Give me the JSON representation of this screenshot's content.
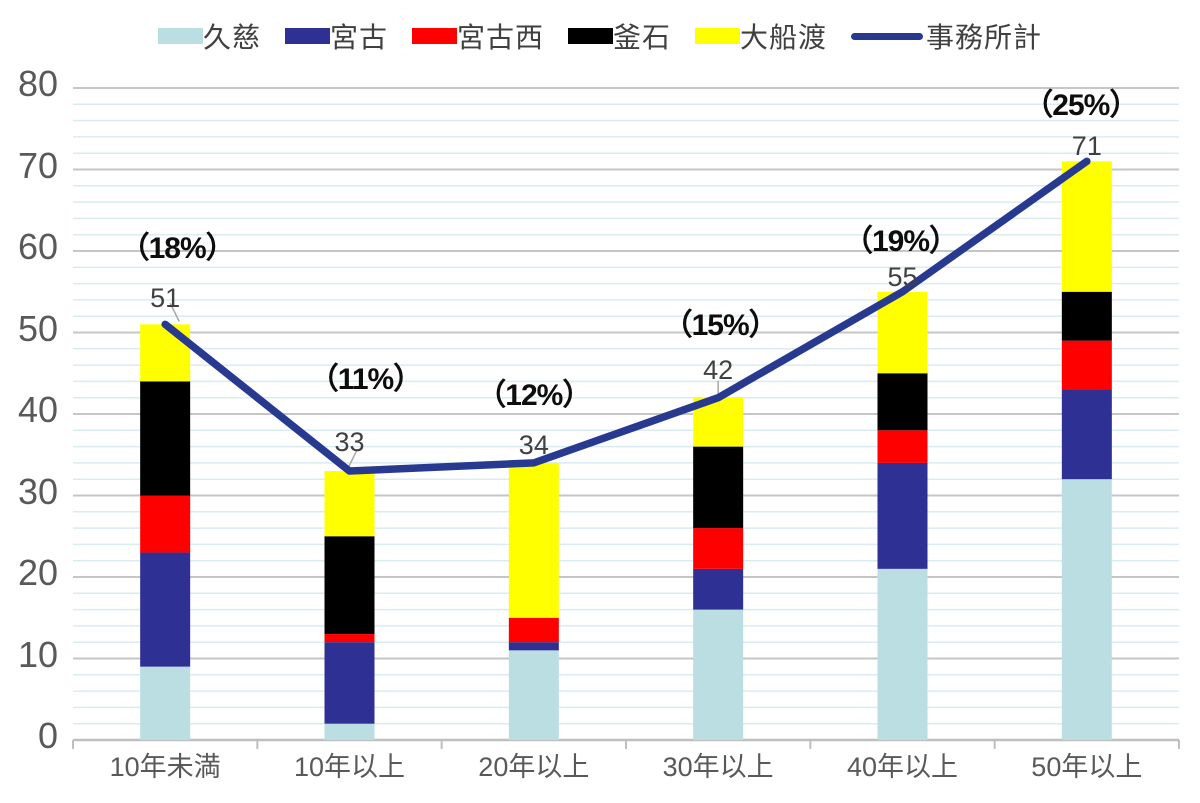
{
  "chart_data": {
    "type": "bar",
    "subtype": "stacked-column-with-line-overlay",
    "categories": [
      "10年未満",
      "10年以上",
      "20年以上",
      "30年以上",
      "40年以上",
      "50年以上"
    ],
    "series": [
      {
        "name": "久慈",
        "color": "#BBDEE3",
        "values": [
          9,
          2,
          11,
          16,
          21,
          32
        ]
      },
      {
        "name": "宮古",
        "color": "#2E3193",
        "values": [
          14,
          10,
          1,
          5,
          13,
          11
        ]
      },
      {
        "name": "宮古西",
        "color": "#FF0000",
        "values": [
          7,
          1,
          3,
          5,
          4,
          6
        ]
      },
      {
        "name": "釜石",
        "color": "#000000",
        "values": [
          14,
          12,
          0,
          10,
          7,
          6
        ]
      },
      {
        "name": "大船渡",
        "color": "#FFFF00",
        "values": [
          7,
          8,
          19,
          6,
          10,
          16
        ]
      }
    ],
    "line_series": {
      "name": "事務所計",
      "color": "#283A90",
      "values": [
        51,
        33,
        34,
        42,
        55,
        71
      ]
    },
    "total_labels": [
      "51",
      "33",
      "34",
      "42",
      "55",
      "71"
    ],
    "percent_labels": [
      "（18%）",
      "（11%）",
      "（12%）",
      "（15%）",
      "（19%）",
      "（25%）"
    ],
    "yticks": [
      "0",
      "10",
      "20",
      "30",
      "40",
      "50",
      "60",
      "70",
      "80"
    ],
    "ylim": [
      0,
      80
    ],
    "y_minor_step": 2,
    "y_major_step": 10,
    "grid": {
      "minor_color": "#DAECF2",
      "major_color": "#C6C6C6",
      "axis_color": "#BFBFBF",
      "leader_color": "#A6A6A6"
    },
    "legend_position": "top",
    "xlabel": "",
    "ylabel": "",
    "title": ""
  }
}
